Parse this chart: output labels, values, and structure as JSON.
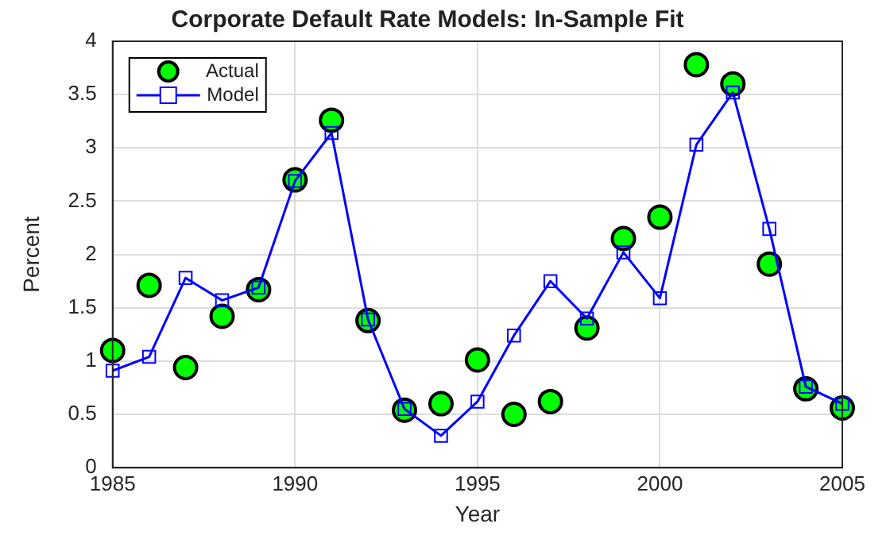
{
  "chart_data": {
    "type": "scatter",
    "title": "Corporate Default Rate Models: In-Sample Fit",
    "xlabel": "Year",
    "ylabel": "Percent",
    "x": [
      1985,
      1986,
      1987,
      1988,
      1989,
      1990,
      1991,
      1992,
      1993,
      1994,
      1995,
      1996,
      1997,
      1998,
      1999,
      2000,
      2001,
      2002,
      2003,
      2004,
      2005
    ],
    "series": [
      {
        "name": "Actual",
        "marker": "circle",
        "color": "#00ff00",
        "values": [
          1.1,
          1.71,
          0.94,
          1.42,
          1.67,
          2.7,
          3.26,
          1.38,
          0.54,
          0.6,
          1.01,
          0.5,
          0.62,
          1.31,
          2.15,
          2.35,
          3.78,
          3.6,
          1.91,
          0.74,
          0.56
        ]
      },
      {
        "name": "Model",
        "type": "line",
        "marker": "square",
        "line_style": "solid",
        "color": "#0000ff",
        "values": [
          0.91,
          1.04,
          1.78,
          1.57,
          1.69,
          2.69,
          3.14,
          1.39,
          0.55,
          0.3,
          0.62,
          1.24,
          1.75,
          1.4,
          2.02,
          1.59,
          3.03,
          3.52,
          2.24,
          0.76,
          0.6
        ]
      }
    ],
    "xlim": [
      1985,
      2005
    ],
    "xticks": [
      1985,
      1990,
      1995,
      2000,
      2005
    ],
    "ylim": [
      0,
      4
    ],
    "yticks": [
      0,
      0.5,
      1,
      1.5,
      2,
      2.5,
      3,
      3.5,
      4
    ],
    "grid": true,
    "legend": "top left"
  }
}
